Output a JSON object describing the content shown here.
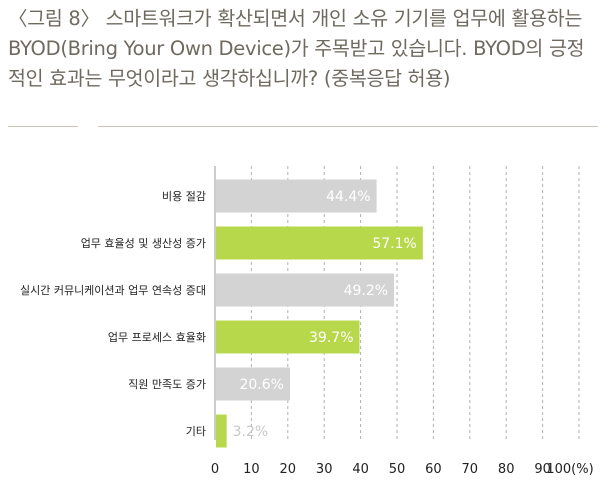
{
  "title": "〈그림 8〉 스마트워크가 확산되면서 개인 소유 기기를 업무에 활용하는 BYOD(Bring Your Own Device)가 주목받고 있습니다. BYOD의 긍정적인 효과는 무엇이라고 생각하십니까? (중복응답 허용)",
  "colors": {
    "gray": "#d3d3d3",
    "green": "#b8d84c",
    "label_on_bar": "#ffffff",
    "label_outside": "#c8c8c8"
  },
  "chart_data": {
    "type": "bar",
    "orientation": "horizontal",
    "title": "〈그림 8〉 스마트워크가 확산되면서 개인 소유 기기를 업무에 활용하는 BYOD(Bring Your Own Device)가 주목받고 있습니다. BYOD의 긍정적인 효과는 무엇이라고 생각하십니까? (중복응답 허용)",
    "categories": [
      "비용 절감",
      "업무 효율성 및 생산성 증가",
      "실시간 커뮤니케이션과 업무 연속성 증대",
      "업무 프로세스 효율화",
      "직원 만족도 증가",
      "기타"
    ],
    "values": [
      44.4,
      57.1,
      49.2,
      39.7,
      20.6,
      3.2
    ],
    "value_labels": [
      "44.4%",
      "57.1%",
      "49.2%",
      "39.7%",
      "20.6%",
      "3.2%"
    ],
    "bar_colors": [
      "gray",
      "green",
      "gray",
      "green",
      "gray",
      "green"
    ],
    "xlim": [
      0,
      100
    ],
    "xticks": [
      0,
      10,
      20,
      30,
      40,
      50,
      60,
      70,
      80,
      90,
      100
    ],
    "xtick_labels": [
      "0",
      "10",
      "20",
      "30",
      "40",
      "50",
      "60",
      "70",
      "80",
      "90",
      "100(%)"
    ],
    "grid": "vertical-dashed"
  }
}
